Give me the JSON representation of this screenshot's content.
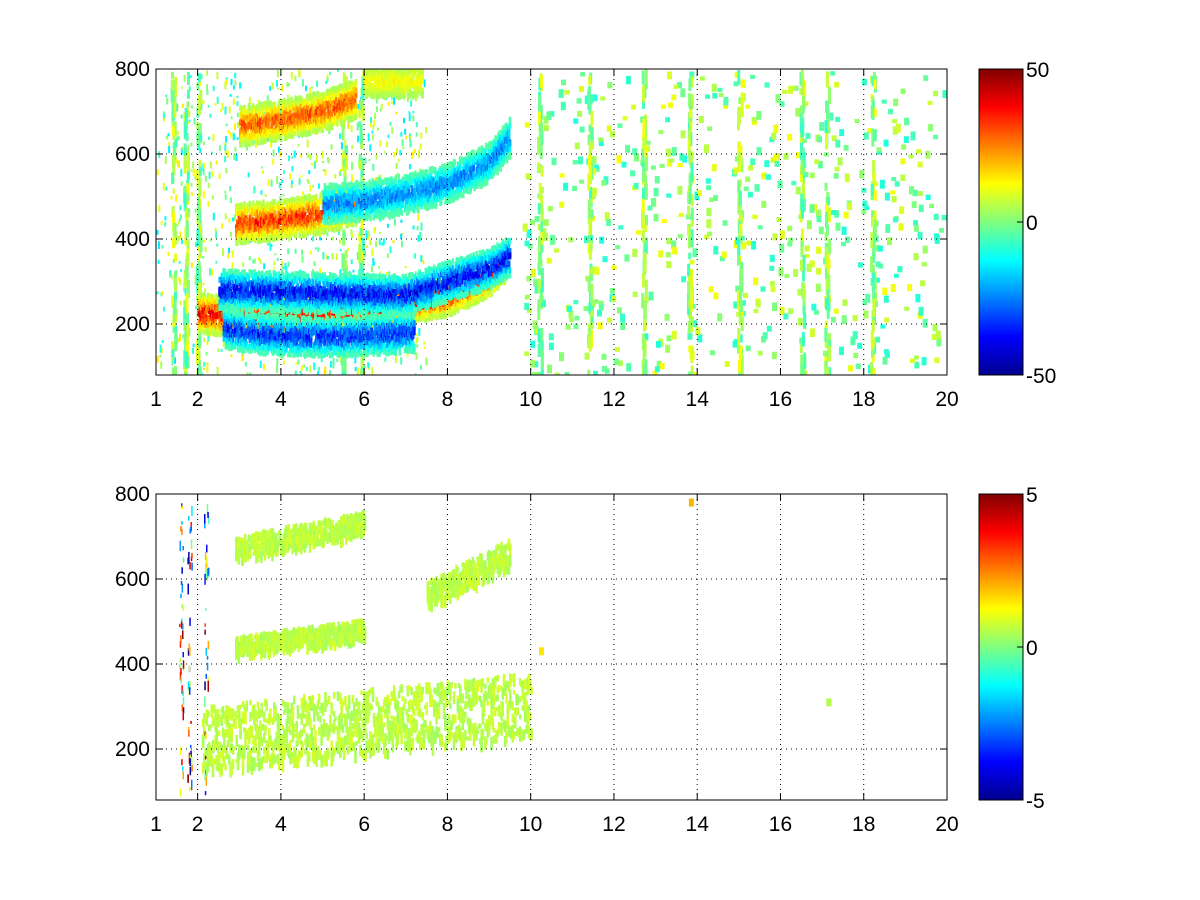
{
  "chart_data": [
    {
      "type": "heatmap",
      "panel": "top",
      "x_ticks": [
        "1",
        "2",
        "4",
        "6",
        "8",
        "10",
        "12",
        "14",
        "16",
        "18",
        "20"
      ],
      "x_tick_values": [
        1,
        2,
        4,
        6,
        8,
        10,
        12,
        14,
        16,
        18,
        20
      ],
      "y_ticks": [
        "200",
        "400",
        "600",
        "800"
      ],
      "y_tick_values": [
        200,
        400,
        600,
        800
      ],
      "xlim": [
        1,
        20
      ],
      "ylim": [
        80,
        800
      ],
      "grid": true,
      "colormap": "jet",
      "clim": [
        -50,
        50
      ],
      "colorbar_ticks": [
        "-50",
        "0",
        "50"
      ],
      "colorbar_tick_values": [
        -50,
        0,
        50
      ],
      "ridges": [
        {
          "x": [
            2.0,
            3.0,
            4.0,
            5.0,
            6.0,
            7.0,
            8.0,
            9.0,
            9.4
          ],
          "y": [
            225,
            215,
            215,
            225,
            235,
            245,
            265,
            310,
            345
          ],
          "value": 45
        },
        {
          "x": [
            2.6,
            3.5,
            4.5,
            5.5,
            6.5,
            7.2
          ],
          "y": [
            190,
            175,
            170,
            170,
            175,
            180
          ],
          "value": -40
        },
        {
          "x": [
            2.5,
            4.0,
            5.5,
            7.0,
            8.0,
            9.0,
            9.5
          ],
          "y": [
            280,
            275,
            270,
            268,
            300,
            330,
            360
          ],
          "value": -45
        },
        {
          "x": [
            2.9,
            4.0,
            5.0,
            5.8
          ],
          "y": [
            435,
            445,
            460,
            480
          ],
          "value": 40
        },
        {
          "x": [
            5.0,
            6.0,
            7.0,
            8.0,
            9.0,
            9.5
          ],
          "y": [
            480,
            490,
            505,
            530,
            580,
            640
          ],
          "value": -30
        },
        {
          "x": [
            3.0,
            4.0,
            5.0,
            5.8
          ],
          "y": [
            665,
            680,
            700,
            730
          ],
          "value": 35
        },
        {
          "x": [
            6.0,
            7.0,
            7.4
          ],
          "y": [
            770,
            770,
            775
          ],
          "value": 15
        }
      ],
      "vertical_streaks_x": [
        1.4,
        1.7,
        2.0,
        5.5,
        5.9,
        10.2,
        11.4,
        12.7,
        13.8,
        15.0,
        16.5,
        17.1,
        18.2
      ]
    },
    {
      "type": "heatmap",
      "panel": "bottom",
      "x_ticks": [
        "1",
        "2",
        "4",
        "6",
        "8",
        "10",
        "12",
        "14",
        "16",
        "18",
        "20"
      ],
      "x_tick_values": [
        1,
        2,
        4,
        6,
        8,
        10,
        12,
        14,
        16,
        18,
        20
      ],
      "y_ticks": [
        "200",
        "400",
        "600",
        "800"
      ],
      "y_tick_values": [
        200,
        400,
        600,
        800
      ],
      "xlim": [
        1,
        20
      ],
      "ylim": [
        80,
        800
      ],
      "grid": true,
      "colormap": "jet",
      "clim": [
        -5,
        5
      ],
      "colorbar_ticks": [
        "-5",
        "0",
        "5"
      ],
      "colorbar_tick_values": [
        -5,
        0,
        5
      ],
      "regions": [
        {
          "x": [
            2.1,
            10.0
          ],
          "y_center": [
            220,
            300
          ],
          "height": 150,
          "value": 0.6
        },
        {
          "x": [
            2.9,
            6.0
          ],
          "y_center": [
            440,
            480
          ],
          "height": 40,
          "value": 0.6
        },
        {
          "x": [
            7.5,
            9.5
          ],
          "y_center": [
            560,
            660
          ],
          "height": 60,
          "value": 0.6
        },
        {
          "x": [
            2.9,
            6.0
          ],
          "y_center": [
            670,
            730
          ],
          "height": 50,
          "value": 0.6
        }
      ],
      "vertical_streaks_x": [
        1.6,
        1.8,
        2.2
      ],
      "specks": [
        {
          "x": 13.8,
          "y": 780,
          "value": 2
        },
        {
          "x": 17.1,
          "y": 310,
          "value": 0.5
        },
        {
          "x": 10.2,
          "y": 430,
          "value": 1.5
        }
      ]
    }
  ]
}
